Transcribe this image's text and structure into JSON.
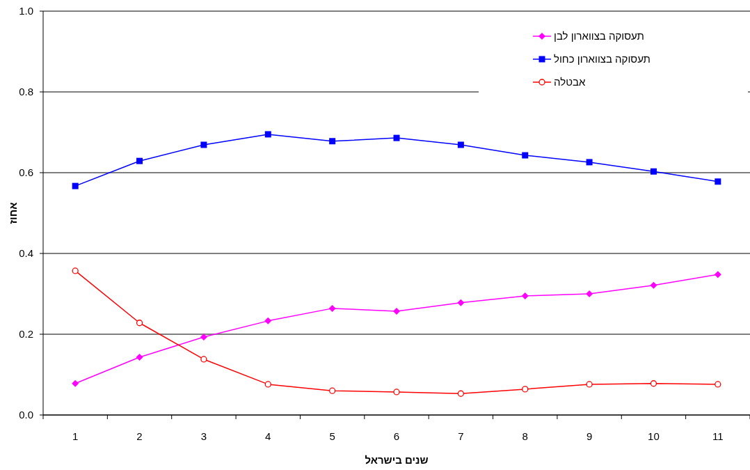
{
  "chart_data": {
    "type": "line",
    "xlabel": "שנים בישראל",
    "ylabel": "אחוז",
    "categories": [
      "1",
      "2",
      "3",
      "4",
      "5",
      "6",
      "7",
      "8",
      "9",
      "10",
      "11"
    ],
    "series": [
      {
        "name": "תעסוקה בצווארון לבן",
        "color": "#ff00ff",
        "marker": "diamond",
        "values": [
          0.078,
          0.143,
          0.193,
          0.233,
          0.264,
          0.257,
          0.278,
          0.295,
          0.3,
          0.321,
          0.348
        ]
      },
      {
        "name": "תעסוקה בצווארון כחול",
        "color": "#0000ff",
        "marker": "square",
        "values": [
          0.567,
          0.629,
          0.669,
          0.695,
          0.678,
          0.686,
          0.669,
          0.643,
          0.626,
          0.603,
          0.578
        ]
      },
      {
        "name": "אבטלה",
        "color": "#ff0000",
        "marker": "circle",
        "values": [
          0.357,
          0.228,
          0.138,
          0.076,
          0.06,
          0.057,
          0.053,
          0.064,
          0.076,
          0.078,
          0.076
        ]
      }
    ],
    "ylim": [
      0,
      1
    ],
    "yticks": [
      {
        "value": 0,
        "label": "0.0"
      },
      {
        "value": 0.2,
        "label": "0.2"
      },
      {
        "value": 0.4,
        "label": "0.4"
      },
      {
        "value": 0.6,
        "label": "0.6"
      },
      {
        "value": 0.8,
        "label": "0.8"
      },
      {
        "value": 1,
        "label": "1.0"
      }
    ],
    "grid": "y",
    "legend": "top right"
  }
}
